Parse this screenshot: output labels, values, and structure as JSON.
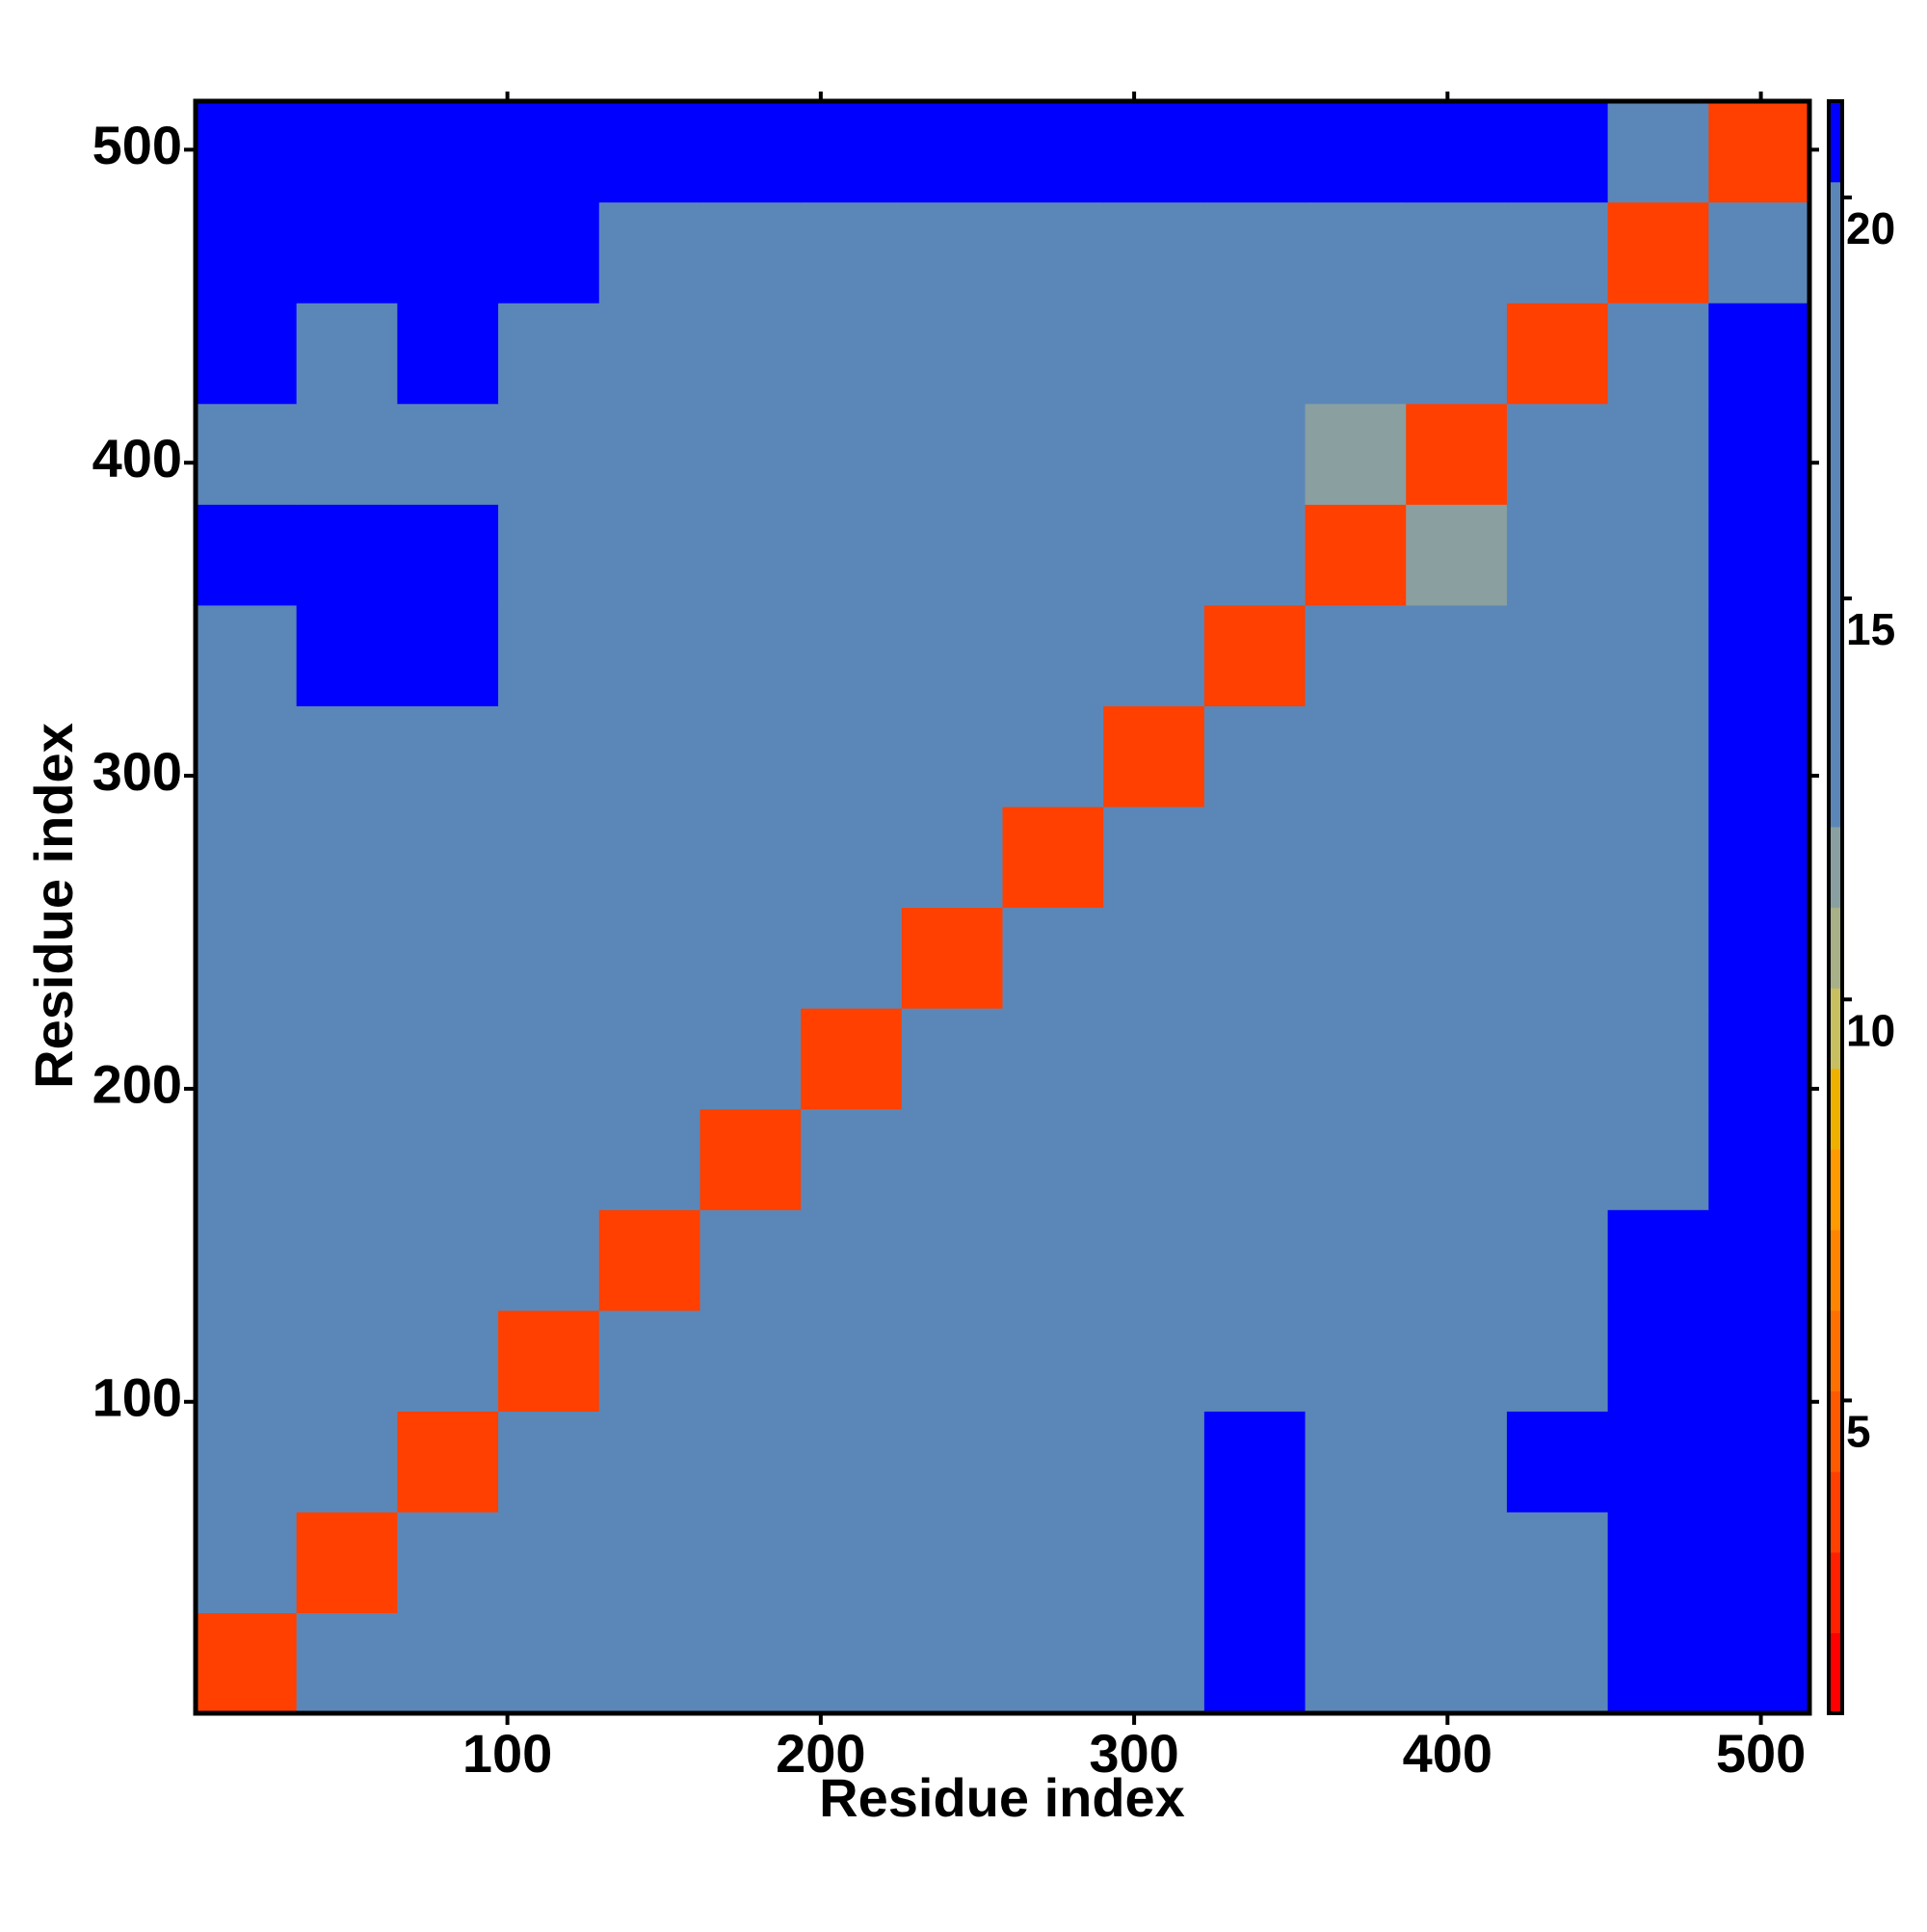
{
  "chart_data": {
    "type": "heatmap",
    "x_label": "Residue index",
    "y_label": "Residue index",
    "xlim": [
      0.5,
      515.5
    ],
    "ylim": [
      0.5,
      515.5
    ],
    "xticks": [
      100,
      200,
      300,
      400,
      500
    ],
    "yticks": [
      100,
      200,
      300,
      400,
      500
    ],
    "zlim": [
      1.1,
      21.2
    ],
    "zticks": [
      5,
      10,
      15,
      20
    ],
    "colorscale": [
      "#ff0000",
      "#ff2000",
      "#ff4000",
      "#ff5a00",
      "#ff7000",
      "#ff8500",
      "#ff9a00",
      "#f0b000",
      "#c8c060",
      "#a8b088",
      "#8aa0a0",
      "#5b87b8",
      "#5b87b8",
      "#5b87b8",
      "#5b87b8",
      "#5b87b8",
      "#5b87b8",
      "#5b87b8",
      "#5b87b8",
      "#0000ff"
    ],
    "z": [
      [
        4,
        13,
        16,
        14,
        18,
        19,
        20,
        19,
        18,
        20,
        21,
        19,
        18,
        19,
        21,
        21
      ],
      [
        14,
        4,
        17,
        13,
        17,
        19,
        20,
        20,
        19,
        20,
        21,
        19,
        18,
        20,
        21,
        21
      ],
      [
        13,
        17,
        4,
        16,
        18,
        19,
        19,
        19,
        19,
        20,
        21,
        20,
        20,
        21,
        21,
        21
      ],
      [
        14,
        13,
        17,
        4,
        17,
        18,
        19,
        18,
        20,
        19,
        19,
        17,
        18,
        20,
        21,
        21
      ],
      [
        16,
        17,
        18,
        17,
        4,
        18,
        18,
        17,
        19,
        18,
        16,
        14,
        16,
        19,
        21,
        21
      ],
      [
        19,
        18,
        18,
        17,
        16,
        4,
        15,
        17,
        18,
        16,
        17,
        16,
        17,
        16,
        17,
        21
      ],
      [
        18,
        18,
        19,
        18,
        17,
        15,
        4,
        16,
        14,
        15,
        16,
        17,
        16,
        15,
        16,
        21
      ],
      [
        18,
        19,
        18,
        14,
        18,
        17,
        16,
        4,
        13,
        16,
        17,
        16,
        16,
        17,
        17,
        21
      ],
      [
        19,
        20,
        20,
        19,
        18,
        16,
        14,
        13,
        4,
        13,
        16,
        16,
        13,
        16,
        17,
        21
      ],
      [
        20,
        20,
        20,
        20,
        19,
        15,
        16,
        17,
        13,
        4,
        13,
        16,
        14,
        16,
        17,
        21
      ],
      [
        20,
        21,
        21,
        19,
        16,
        16,
        16,
        15,
        15,
        13,
        4,
        14,
        15,
        14,
        17,
        21
      ],
      [
        21,
        21,
        21,
        19,
        14,
        13,
        16,
        16,
        16,
        15,
        14,
        4,
        12,
        15,
        16,
        21
      ],
      [
        20,
        20,
        19,
        18,
        16,
        14,
        17,
        15,
        15,
        13,
        15,
        12,
        4,
        13,
        17,
        21
      ],
      [
        21,
        20,
        21,
        20,
        17,
        15,
        15,
        16,
        14,
        14,
        14,
        15,
        13,
        4,
        13,
        21
      ],
      [
        21,
        21,
        21,
        21,
        20,
        17,
        15,
        16,
        18,
        16,
        17,
        16,
        17,
        13,
        4,
        14
      ],
      [
        21,
        21,
        21,
        21,
        21,
        21,
        21,
        21,
        21,
        21,
        21,
        21,
        21,
        21,
        14,
        4
      ]
    ]
  }
}
